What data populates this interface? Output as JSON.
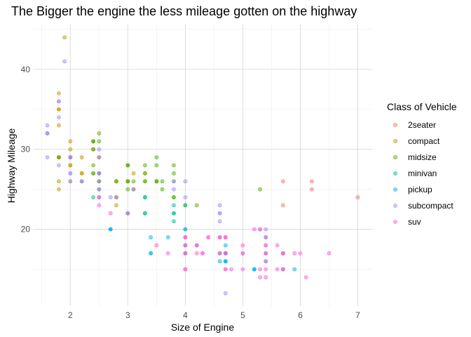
{
  "chart_data": {
    "type": "scatter",
    "title": "The Bigger the engine the less mileage gotten on the highway",
    "xlabel": "Size of Engine",
    "ylabel": "Highway Mileage",
    "xlim": [
      1.35,
      7.25
    ],
    "ylim": [
      10.4,
      45.6
    ],
    "xticks": [
      2,
      3,
      4,
      5,
      6,
      7
    ],
    "yticks": [
      20,
      30,
      40
    ],
    "grid": true,
    "legend": {
      "title": "Class of Vehicle",
      "position": "right"
    },
    "point_alpha": 0.5,
    "series": [
      {
        "name": "2seater",
        "color": "#F8766D",
        "points": [
          [
            5.7,
            26
          ],
          [
            5.7,
            23
          ],
          [
            6.2,
            26
          ],
          [
            6.2,
            25
          ],
          [
            7.0,
            24
          ]
        ]
      },
      {
        "name": "compact",
        "color": "#C49A00",
        "points": [
          [
            1.8,
            29
          ],
          [
            1.8,
            29
          ],
          [
            2.0,
            31
          ],
          [
            2.0,
            30
          ],
          [
            2.8,
            26
          ],
          [
            2.8,
            26
          ],
          [
            3.1,
            27
          ],
          [
            1.8,
            26
          ],
          [
            1.8,
            25
          ],
          [
            2.0,
            28
          ],
          [
            2.0,
            28
          ],
          [
            2.8,
            24
          ],
          [
            3.1,
            25
          ],
          [
            3.1,
            25
          ],
          [
            2.2,
            27
          ],
          [
            2.2,
            29
          ],
          [
            2.4,
            31
          ],
          [
            2.4,
            31
          ],
          [
            3.0,
            26
          ],
          [
            3.0,
            26
          ],
          [
            3.3,
            27
          ],
          [
            1.8,
            35
          ],
          [
            1.8,
            37
          ],
          [
            1.8,
            35
          ],
          [
            1.8,
            29
          ],
          [
            1.8,
            29
          ],
          [
            2.0,
            29
          ],
          [
            2.0,
            29
          ],
          [
            2.8,
            23
          ],
          [
            2.8,
            24
          ],
          [
            1.9,
            44
          ],
          [
            2.0,
            29
          ],
          [
            2.0,
            26
          ],
          [
            2.0,
            29
          ],
          [
            2.5,
            29
          ],
          [
            2.5,
            29
          ],
          [
            1.8,
            33
          ],
          [
            2.5,
            27
          ],
          [
            2.2,
            27
          ],
          [
            2.4,
            30
          ],
          [
            2.4,
            30
          ]
        ]
      },
      {
        "name": "midsize",
        "color": "#53B400",
        "points": [
          [
            2.4,
            30
          ],
          [
            2.4,
            31
          ],
          [
            3.1,
            26
          ],
          [
            3.5,
            29
          ],
          [
            3.6,
            26
          ],
          [
            2.4,
            27
          ],
          [
            3.0,
            26
          ],
          [
            3.3,
            28
          ],
          [
            3.3,
            27
          ],
          [
            3.3,
            26
          ],
          [
            3.8,
            24
          ],
          [
            3.8,
            26
          ],
          [
            3.8,
            27
          ],
          [
            3.8,
            28
          ],
          [
            3.8,
            24
          ],
          [
            3.5,
            26
          ],
          [
            2.5,
            26
          ],
          [
            2.5,
            25
          ],
          [
            3.0,
            25
          ],
          [
            3.0,
            28
          ],
          [
            3.5,
            26
          ],
          [
            4.2,
            23
          ],
          [
            4.0,
            23
          ],
          [
            2.4,
            28
          ],
          [
            2.4,
            31
          ],
          [
            2.5,
            27
          ],
          [
            2.5,
            26
          ],
          [
            3.0,
            28
          ],
          [
            3.3,
            26
          ],
          [
            2.2,
            26
          ],
          [
            2.5,
            27
          ],
          [
            3.0,
            28
          ],
          [
            3.0,
            26
          ],
          [
            3.5,
            28
          ],
          [
            1.8,
            29
          ],
          [
            2.5,
            32
          ],
          [
            2.5,
            31
          ],
          [
            2.8,
            26
          ],
          [
            3.6,
            25
          ],
          [
            5.3,
            25
          ],
          [
            2.4,
            27
          ],
          [
            3.5,
            26
          ]
        ]
      },
      {
        "name": "minivan",
        "color": "#00C094",
        "points": [
          [
            2.4,
            24
          ],
          [
            3.0,
            22
          ],
          [
            3.3,
            22
          ],
          [
            3.3,
            22
          ],
          [
            3.3,
            24
          ],
          [
            3.3,
            24
          ],
          [
            3.8,
            22
          ],
          [
            3.8,
            23
          ],
          [
            3.8,
            21
          ],
          [
            4.0,
            23
          ],
          [
            3.8,
            22
          ]
        ]
      },
      {
        "name": "pickup",
        "color": "#00B6EB",
        "points": [
          [
            3.7,
            19
          ],
          [
            4.7,
            18
          ],
          [
            4.7,
            17
          ],
          [
            4.7,
            16
          ],
          [
            5.2,
            15
          ],
          [
            5.2,
            15
          ],
          [
            4.7,
            16
          ],
          [
            4.7,
            17
          ],
          [
            4.7,
            16
          ],
          [
            5.7,
            17
          ],
          [
            5.9,
            15
          ],
          [
            4.7,
            17
          ],
          [
            4.7,
            17
          ],
          [
            5.2,
            15
          ],
          [
            5.7,
            15
          ],
          [
            2.7,
            20
          ],
          [
            2.7,
            20
          ],
          [
            2.7,
            20
          ],
          [
            3.4,
            17
          ],
          [
            3.4,
            19
          ],
          [
            4.0,
            20
          ],
          [
            4.0,
            17
          ],
          [
            4.6,
            16
          ],
          [
            5.4,
            17
          ],
          [
            5.4,
            16
          ],
          [
            3.0,
            22
          ],
          [
            3.4,
            17
          ],
          [
            4.2,
            18
          ],
          [
            4.6,
            17
          ],
          [
            4.0,
            17
          ],
          [
            4.0,
            20
          ],
          [
            4.0,
            18
          ],
          [
            5.4,
            19
          ]
        ]
      },
      {
        "name": "subcompact",
        "color": "#A58AFF",
        "points": [
          [
            3.8,
            26
          ],
          [
            3.8,
            25
          ],
          [
            4.0,
            26
          ],
          [
            4.0,
            24
          ],
          [
            4.6,
            21
          ],
          [
            4.6,
            22
          ],
          [
            4.6,
            23
          ],
          [
            4.6,
            22
          ],
          [
            5.4,
            20
          ],
          [
            1.6,
            33
          ],
          [
            1.6,
            32
          ],
          [
            1.6,
            32
          ],
          [
            1.6,
            29
          ],
          [
            1.6,
            32
          ],
          [
            1.8,
            34
          ],
          [
            1.8,
            36
          ],
          [
            1.8,
            36
          ],
          [
            2.0,
            29
          ],
          [
            2.0,
            26
          ],
          [
            2.0,
            27
          ],
          [
            2.5,
            30
          ],
          [
            2.5,
            26
          ],
          [
            2.5,
            25
          ],
          [
            2.5,
            27
          ],
          [
            2.5,
            25
          ],
          [
            2.5,
            24
          ],
          [
            2.2,
            26
          ],
          [
            2.2,
            26
          ],
          [
            2.5,
            29
          ],
          [
            2.5,
            27
          ],
          [
            1.9,
            41
          ],
          [
            2.0,
            29
          ],
          [
            2.7,
            24
          ],
          [
            1.8,
            28
          ],
          [
            2.0,
            27
          ],
          [
            2.5,
            24
          ],
          [
            2.8,
            24
          ],
          [
            3.1,
            25
          ],
          [
            4.7,
            12
          ]
        ]
      },
      {
        "name": "suv",
        "color": "#FB61D7",
        "points": [
          [
            5.3,
            20
          ],
          [
            5.3,
            15
          ],
          [
            5.3,
            20
          ],
          [
            5.7,
            17
          ],
          [
            6.0,
            17
          ],
          [
            5.7,
            15
          ],
          [
            5.7,
            15
          ],
          [
            6.5,
            17
          ],
          [
            4.7,
            19
          ],
          [
            5.2,
            20
          ],
          [
            5.9,
            17
          ],
          [
            4.7,
            19
          ],
          [
            5.7,
            17
          ],
          [
            4.6,
            19
          ],
          [
            5.4,
            17
          ],
          [
            5.4,
            17
          ],
          [
            4.0,
            19
          ],
          [
            4.0,
            17
          ],
          [
            4.0,
            19
          ],
          [
            4.0,
            17
          ],
          [
            4.0,
            15
          ],
          [
            4.6,
            19
          ],
          [
            5.0,
            17
          ],
          [
            4.2,
            18
          ],
          [
            4.2,
            17
          ],
          [
            4.6,
            19
          ],
          [
            4.6,
            17
          ],
          [
            5.4,
            18
          ],
          [
            5.4,
            14
          ],
          [
            3.0,
            22
          ],
          [
            3.7,
            17
          ],
          [
            4.0,
            19
          ],
          [
            4.7,
            19
          ],
          [
            5.7,
            17
          ],
          [
            6.1,
            14
          ],
          [
            4.0,
            15
          ],
          [
            4.7,
            15
          ],
          [
            5.0,
            15
          ],
          [
            4.7,
            17
          ],
          [
            5.4,
            19
          ],
          [
            2.5,
            23
          ],
          [
            2.5,
            24
          ],
          [
            2.7,
            22
          ],
          [
            3.5,
            18
          ],
          [
            4.0,
            18
          ],
          [
            4.4,
            19
          ],
          [
            5.3,
            14
          ],
          [
            5.4,
            15
          ],
          [
            5.6,
            18
          ],
          [
            4.4,
            19
          ],
          [
            4.7,
            15
          ],
          [
            4.7,
            17
          ],
          [
            5.4,
            16
          ],
          [
            5.6,
            15
          ],
          [
            4.0,
            18
          ],
          [
            4.6,
            17
          ],
          [
            5.0,
            17
          ],
          [
            4.3,
            17
          ],
          [
            4.8,
            15
          ],
          [
            5.0,
            18
          ],
          [
            5.4,
            18
          ],
          [
            4.3,
            17
          ],
          [
            4.2,
            18
          ]
        ]
      }
    ]
  }
}
